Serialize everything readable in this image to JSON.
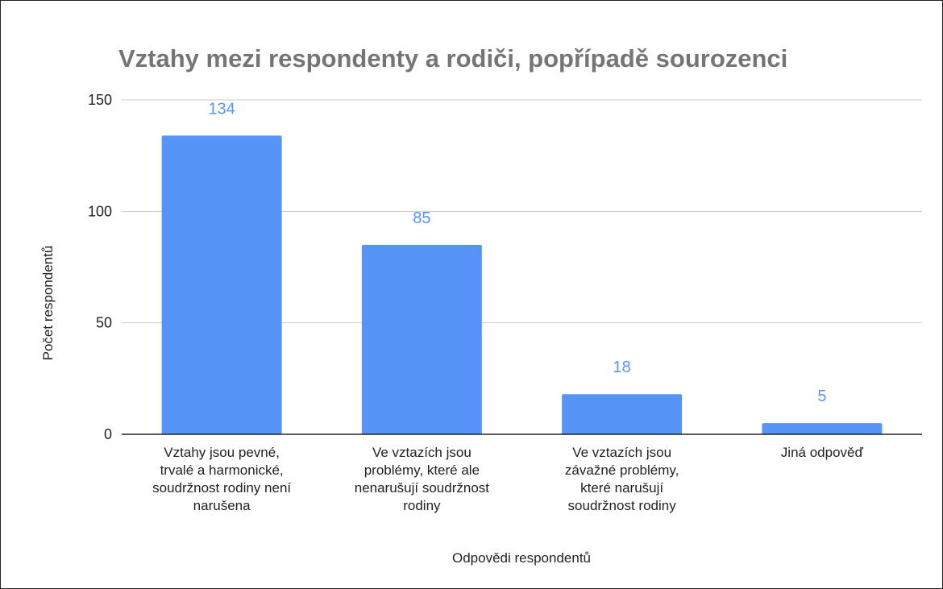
{
  "chart_data": {
    "type": "bar",
    "title": "Vztahy mezi respondenty a rodiči, popřípadě sourozenci",
    "xlabel": "Odpovědi respondentů",
    "ylabel": "Počet respondentů",
    "categories": [
      "Vztahy jsou pevné, trvalé a harmonické, soudržnost rodiny není narušena",
      "Ve vztazích jsou problémy, které ale nenarušují soudržnost rodiny",
      "Ve vztazích jsou závažné problémy, které narušují soudržnost rodiny",
      "Jiná odpověď"
    ],
    "category_lines": [
      [
        "Vztahy jsou pevné,",
        "trvalé a harmonické,",
        "soudržnost rodiny není",
        "narušena"
      ],
      [
        "Ve vztazích jsou",
        "problémy, které ale",
        "nenarušují soudržnost",
        "rodiny"
      ],
      [
        "Ve vztazích jsou",
        "závažné problémy,",
        "které narušují",
        "soudržnost rodiny"
      ],
      [
        "Jiná odpověď"
      ]
    ],
    "values": [
      134,
      85,
      18,
      5
    ],
    "data_labels": [
      "134",
      "85",
      "18",
      "5"
    ],
    "ylim": [
      0,
      150
    ],
    "yticks": [
      0,
      50,
      100,
      150
    ],
    "ytick_labels": [
      "0",
      "50",
      "100",
      "150"
    ],
    "grid": true,
    "legend": "none",
    "colors": {
      "bar": "#5794f7",
      "data_label": "#5794f7",
      "gridline": "#cccccc",
      "axis": "#222222",
      "title": "#757575"
    }
  }
}
